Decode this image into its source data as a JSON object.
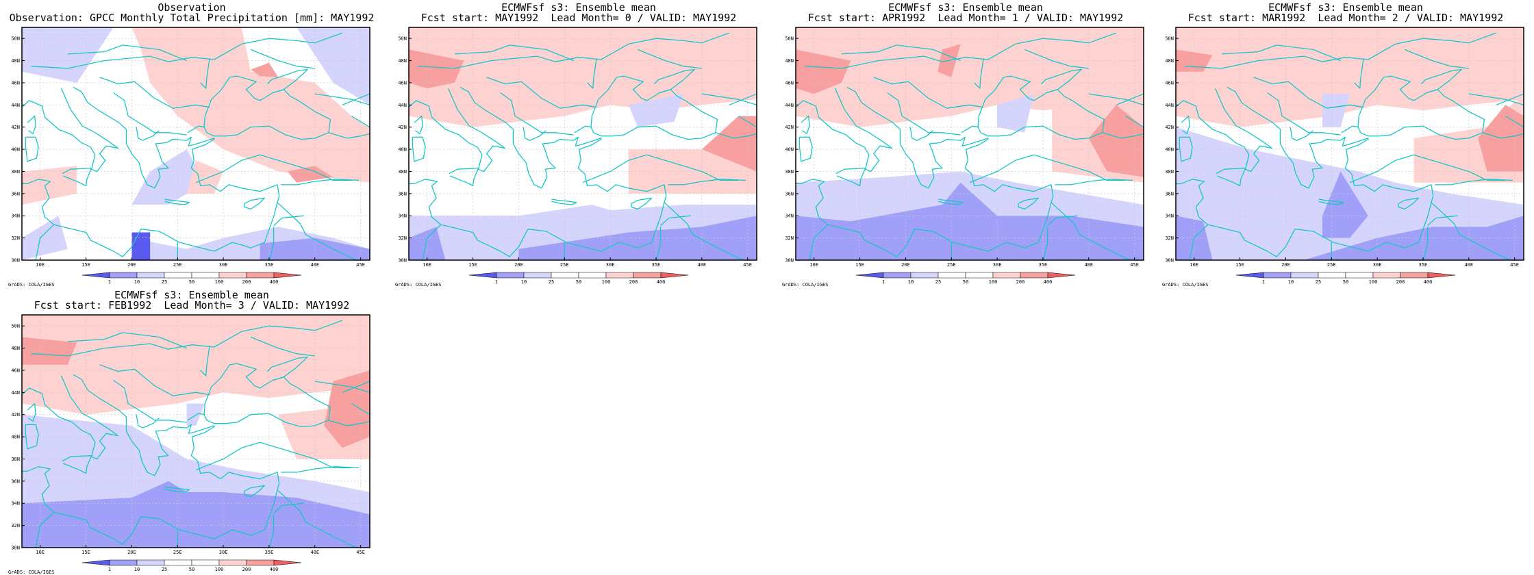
{
  "colors": {
    "coast": "#18c6c6",
    "frame": "#000000",
    "grid": "#c8c8c8",
    "levels": [
      "#5a5af0",
      "#a0a0f8",
      "#d4d4fc",
      "#ffffff",
      "#ffd2d2",
      "#f8a0a0",
      "#f06060"
    ]
  },
  "map": {
    "lon_range": [
      8,
      46
    ],
    "lat_range": [
      30,
      51
    ],
    "lat_ticks": [
      "30N",
      "32N",
      "34N",
      "36N",
      "38N",
      "40N",
      "42N",
      "44N",
      "46N",
      "48N",
      "50N"
    ],
    "lon_ticks": [
      "10E",
      "15E",
      "20E",
      "25E",
      "30E",
      "35E",
      "40E",
      "45E"
    ]
  },
  "colorbar": {
    "levels": [
      "1",
      "10",
      "25",
      "50",
      "100",
      "200",
      "400"
    ]
  },
  "credit": "GrADS: COLA/IGES",
  "panels": [
    {
      "id": "obs",
      "title1": "Observation",
      "title2": "Observation: GPCC Monthly Total Precipitation [mm]: MAY1992"
    },
    {
      "id": "lead0",
      "title1": "ECMWFsf s3: Ensemble mean",
      "title2": "Fcst start: MAY1992  Lead Month= 0 / VALID: MAY1992"
    },
    {
      "id": "lead1",
      "title1": "ECMWFsf s3: Ensemble mean",
      "title2": "Fcst start: APR1992  Lead Month= 1 / VALID: MAY1992"
    },
    {
      "id": "lead2",
      "title1": "ECMWFsf s3: Ensemble mean",
      "title2": "Fcst start: MAR1992  Lead Month= 2 / VALID: MAY1992"
    },
    {
      "id": "lead3",
      "title1": "ECMWFsf s3: Ensemble mean",
      "title2": "Fcst start: FEB1992  Lead Month= 3 / VALID: MAY1992"
    }
  ]
}
